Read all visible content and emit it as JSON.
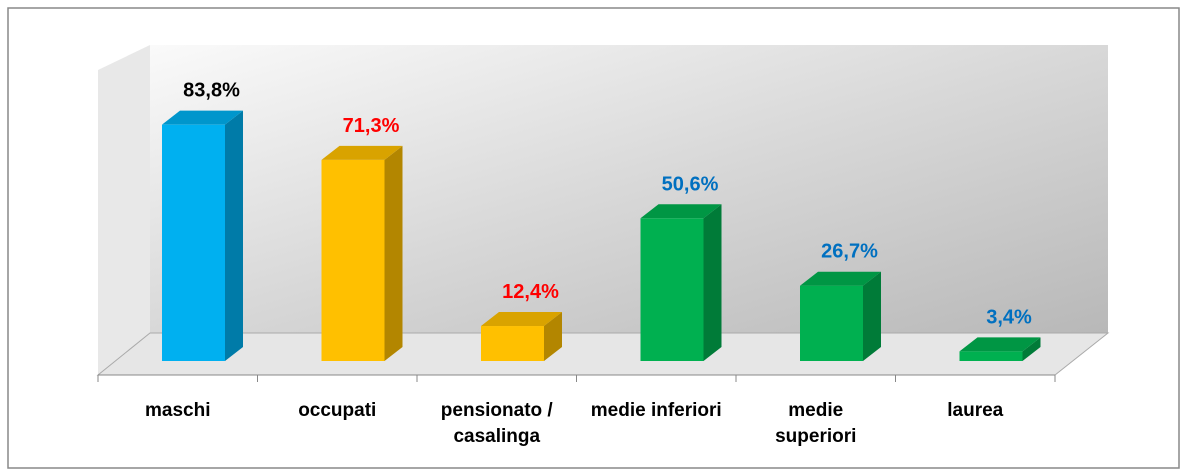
{
  "chart_data": {
    "type": "bar3d",
    "categories": [
      "maschi",
      "occupati",
      "pensionato / casalinga",
      "medie inferiori",
      "medie superiori",
      "laurea"
    ],
    "values": [
      83.8,
      71.3,
      12.4,
      50.6,
      26.7,
      3.4
    ],
    "value_labels": [
      "83,8%",
      "71,3%",
      "12,4%",
      "50,6%",
      "26,7%",
      "3,4%"
    ],
    "colors": [
      "#00b0f0",
      "#ffc000",
      "#ffc000",
      "#00b050",
      "#00b050",
      "#00b050"
    ],
    "label_colors": [
      "#000000",
      "#ff0000",
      "#ff0000",
      "#0070c0",
      "#0070c0",
      "#0070c0"
    ]
  }
}
